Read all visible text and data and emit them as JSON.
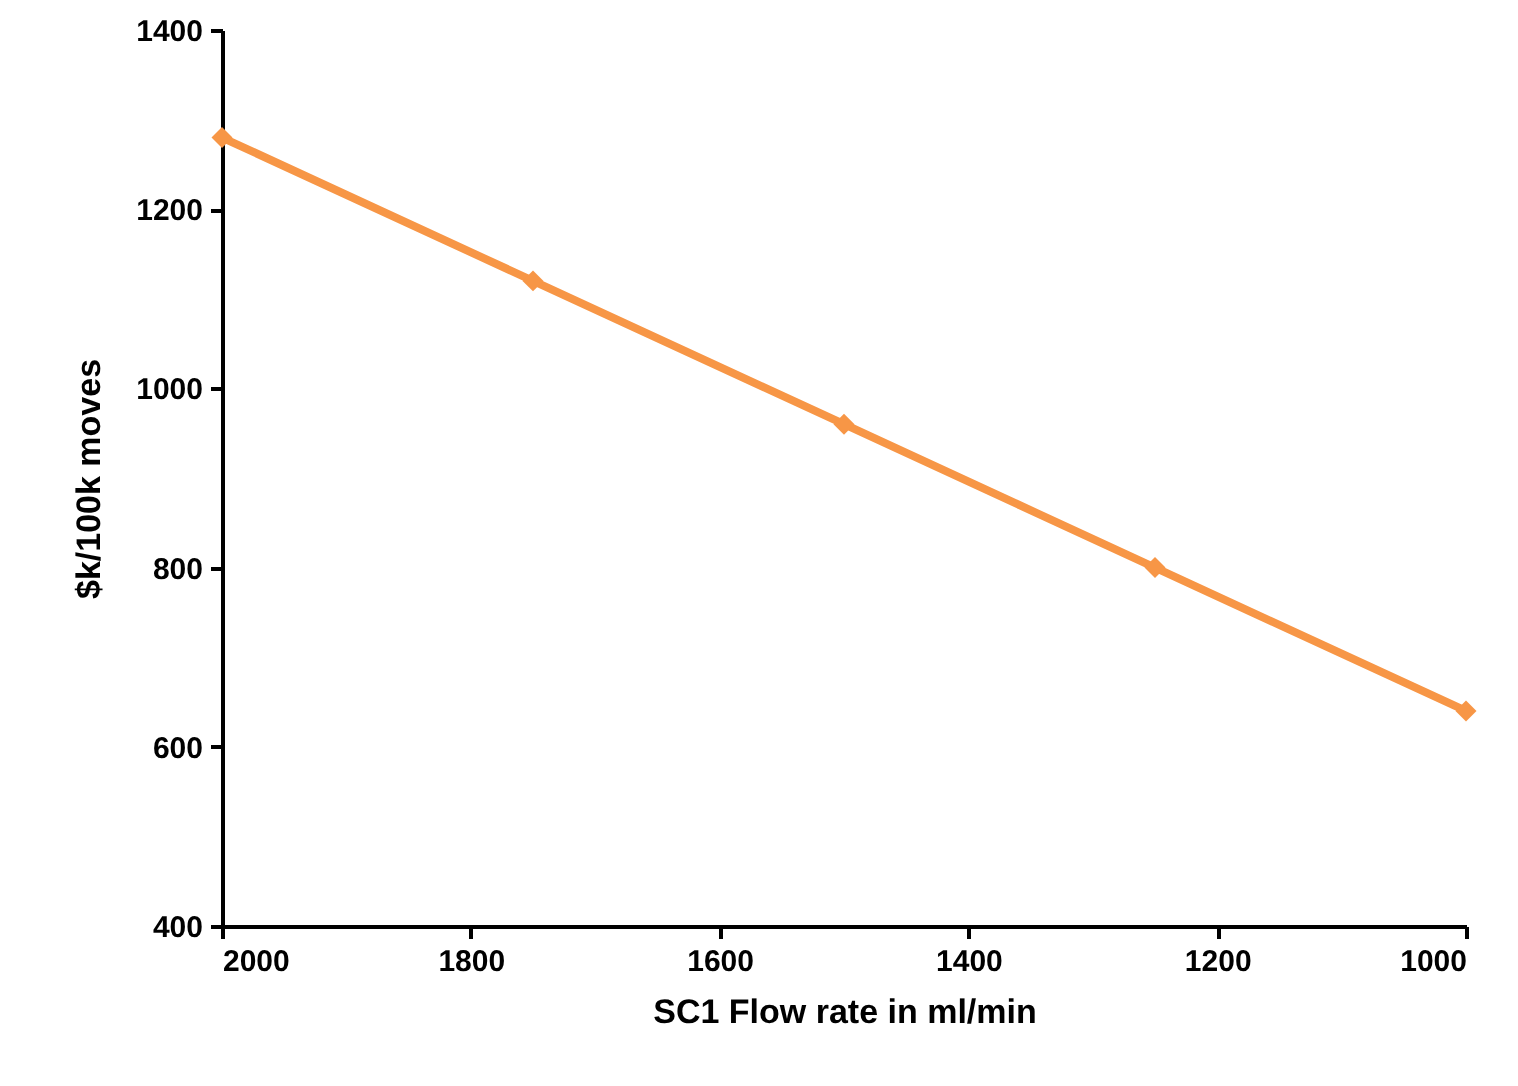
{
  "chart_data": {
    "type": "line",
    "xlabel": "SC1 Flow rate in ml/min",
    "ylabel": "$k/100k moves",
    "x": [
      2000,
      1750,
      1500,
      1250,
      1000
    ],
    "series": [
      {
        "color": "#f79646",
        "values": [
          1280,
          1120,
          960,
          800,
          640
        ]
      }
    ],
    "xlim": [
      2000,
      1000
    ],
    "xticks": [
      2000,
      1800,
      1600,
      1400,
      1200,
      1000
    ],
    "ylim": [
      400,
      1400
    ],
    "yticks": [
      400,
      600,
      800,
      1000,
      1200,
      1400
    ],
    "grid": false,
    "marker": "diamond",
    "line_style": "solid"
  }
}
